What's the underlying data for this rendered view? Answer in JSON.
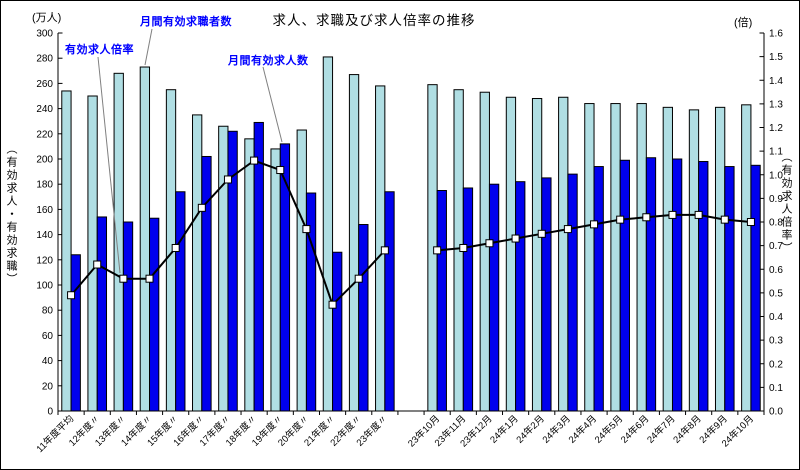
{
  "chart_data": {
    "type": "bar",
    "subtype": "grouped-bars-with-line-overlay",
    "title": "求人、求職及び求人倍率の推移",
    "unit_left": "(万人)",
    "unit_right": "(倍)",
    "ylabel_left": "（有効求人・有効求職）",
    "ylabel_right": "（有効求人倍率）",
    "y_left": {
      "min": 0,
      "max": 300,
      "step": 20
    },
    "y_right": {
      "min": 0.0,
      "max": 1.6,
      "step": 0.1
    },
    "grid": "off",
    "legend_position": "floating-annotations",
    "series_labels": {
      "seekers": "月間有効求職者数",
      "openings": "月間有効求人数",
      "ratio": "有効求人倍率"
    },
    "sections": [
      {
        "name": "fiscal-year-averages",
        "categories": [
          "11年度平均",
          "12年度〃",
          "13年度〃",
          "14年度〃",
          "15年度〃",
          "16年度〃",
          "17年度〃",
          "18年度〃",
          "19年度〃",
          "20年度〃",
          "21年度〃",
          "22年度〃",
          "23年度〃"
        ],
        "seekers": [
          254,
          250,
          268,
          273,
          255,
          235,
          226,
          216,
          208,
          223,
          281,
          267,
          258
        ],
        "openings": [
          124,
          154,
          150,
          153,
          174,
          202,
          222,
          229,
          212,
          173,
          126,
          148,
          174
        ],
        "ratio": [
          0.49,
          0.62,
          0.56,
          0.56,
          0.69,
          0.86,
          0.98,
          1.06,
          1.02,
          0.77,
          0.45,
          0.56,
          0.68
        ]
      },
      {
        "name": "monthly",
        "categories": [
          "23年10月",
          "23年11月",
          "23年12月",
          "24年1月",
          "24年2月",
          "24年3月",
          "24年4月",
          "24年5月",
          "24年6月",
          "24年7月",
          "24年8月",
          "24年9月",
          "24年10月"
        ],
        "seekers": [
          259,
          255,
          253,
          249,
          248,
          249,
          244,
          244,
          244,
          241,
          239,
          241,
          243
        ],
        "openings": [
          175,
          177,
          180,
          182,
          185,
          188,
          194,
          199,
          201,
          200,
          198,
          194,
          195
        ],
        "ratio": [
          0.68,
          0.69,
          0.71,
          0.73,
          0.75,
          0.77,
          0.79,
          0.81,
          0.82,
          0.83,
          0.83,
          0.81,
          0.8
        ]
      }
    ],
    "colors": {
      "seekers_bar": "#B0DEE3",
      "openings_bar": "#0000EE",
      "bar_border": "#000000",
      "line": "#000000",
      "marker_fill": "#FFFFFF",
      "marker_border": "#000000",
      "annotation_text": "#0000FF",
      "leader_line": "#808080",
      "axis": "#000000"
    }
  }
}
